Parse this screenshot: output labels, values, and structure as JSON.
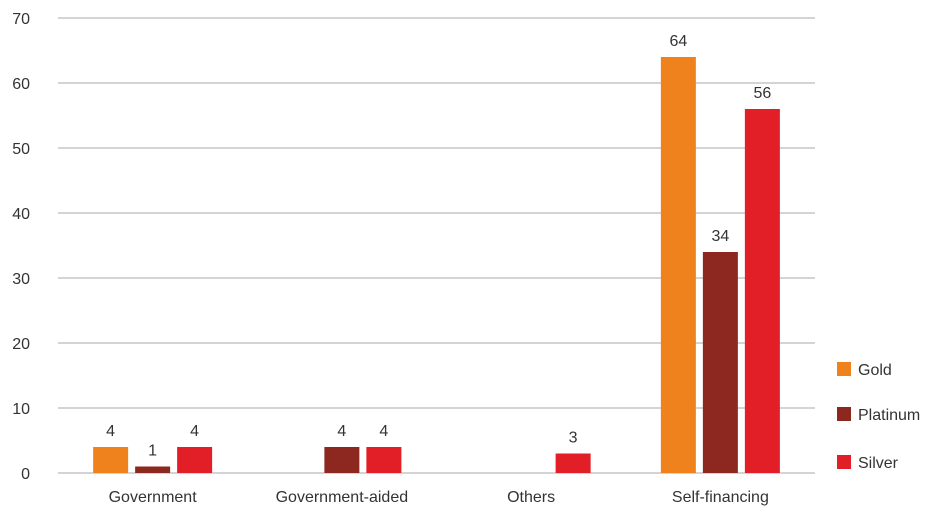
{
  "chart_data": {
    "type": "bar",
    "categories": [
      "Government",
      "Government-aided",
      "Others",
      "Self-financing"
    ],
    "series": [
      {
        "name": "Gold",
        "color": "#F0821E",
        "values": [
          4,
          0,
          0,
          64
        ]
      },
      {
        "name": "Platinum",
        "color": "#8C2820",
        "values": [
          1,
          4,
          0,
          34
        ]
      },
      {
        "name": "Silver",
        "color": "#E21F26",
        "values": [
          4,
          4,
          3,
          56
        ]
      }
    ],
    "y_ticks": [
      "0",
      "10",
      "20",
      "30",
      "40",
      "50",
      "60",
      "70"
    ],
    "ylim": [
      0,
      70
    ],
    "grid": true,
    "legend_position": "bottom-right",
    "title": "",
    "xlabel": "",
    "ylabel": ""
  }
}
